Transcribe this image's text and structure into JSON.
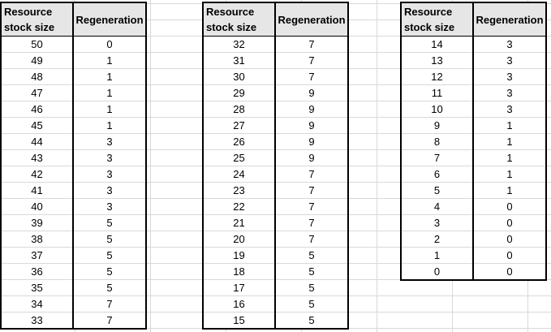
{
  "tables": [
    {
      "headers": [
        "Resource stock size",
        "Regeneration"
      ],
      "rows": [
        [
          "50",
          "0"
        ],
        [
          "49",
          "1"
        ],
        [
          "48",
          "1"
        ],
        [
          "47",
          "1"
        ],
        [
          "46",
          "1"
        ],
        [
          "45",
          "1"
        ],
        [
          "44",
          "3"
        ],
        [
          "43",
          "3"
        ],
        [
          "42",
          "3"
        ],
        [
          "41",
          "3"
        ],
        [
          "40",
          "3"
        ],
        [
          "39",
          "5"
        ],
        [
          "38",
          "5"
        ],
        [
          "37",
          "5"
        ],
        [
          "36",
          "5"
        ],
        [
          "35",
          "5"
        ],
        [
          "34",
          "7"
        ],
        [
          "33",
          "7"
        ]
      ]
    },
    {
      "headers": [
        "Resource stock size",
        "Regeneration"
      ],
      "rows": [
        [
          "32",
          "7"
        ],
        [
          "31",
          "7"
        ],
        [
          "30",
          "7"
        ],
        [
          "29",
          "9"
        ],
        [
          "28",
          "9"
        ],
        [
          "27",
          "9"
        ],
        [
          "26",
          "9"
        ],
        [
          "25",
          "9"
        ],
        [
          "24",
          "7"
        ],
        [
          "23",
          "7"
        ],
        [
          "22",
          "7"
        ],
        [
          "21",
          "7"
        ],
        [
          "20",
          "7"
        ],
        [
          "19",
          "5"
        ],
        [
          "18",
          "5"
        ],
        [
          "17",
          "5"
        ],
        [
          "16",
          "5"
        ],
        [
          "15",
          "5"
        ]
      ]
    },
    {
      "headers": [
        "Resource stock size",
        "Regeneration"
      ],
      "rows": [
        [
          "14",
          "3"
        ],
        [
          "13",
          "3"
        ],
        [
          "12",
          "3"
        ],
        [
          "11",
          "3"
        ],
        [
          "10",
          "3"
        ],
        [
          "9",
          "1"
        ],
        [
          "8",
          "1"
        ],
        [
          "7",
          "1"
        ],
        [
          "6",
          "1"
        ],
        [
          "5",
          "1"
        ],
        [
          "4",
          "0"
        ],
        [
          "3",
          "0"
        ],
        [
          "2",
          "0"
        ],
        [
          "1",
          "0"
        ],
        [
          "0",
          "0"
        ]
      ]
    }
  ],
  "colors": {
    "header_fill": "#e7e6e6",
    "grid_line": "#d9d9d9",
    "border": "#000000"
  }
}
